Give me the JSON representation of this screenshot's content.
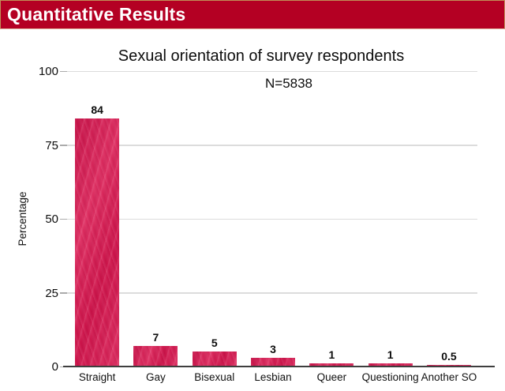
{
  "header": {
    "title": "Quantitative Results"
  },
  "colors": {
    "banner_bg": "#b40023",
    "banner_border": "#c09058",
    "bar": "#d2164c",
    "gridline": "#dcdcdc",
    "axis": "#3e3e3e",
    "header_text": "#ffffff"
  },
  "chart_data": {
    "type": "bar",
    "title": "Sexual orientation of survey respondents",
    "subtitle": "N=5838",
    "categories": [
      "Straight",
      "Gay",
      "Bisexual",
      "Lesbian",
      "Queer",
      "Questioning",
      "Another SO"
    ],
    "values": [
      84,
      7,
      5,
      3,
      1,
      1,
      0.5
    ],
    "value_labels": [
      "84",
      "7",
      "5",
      "3",
      "1",
      "1",
      "0.5"
    ],
    "xlabel": "",
    "ylabel": "Percentage",
    "ylim": [
      0,
      100
    ],
    "yticks": [
      0,
      25,
      50,
      75,
      100
    ],
    "grid": true,
    "legend": "none"
  }
}
